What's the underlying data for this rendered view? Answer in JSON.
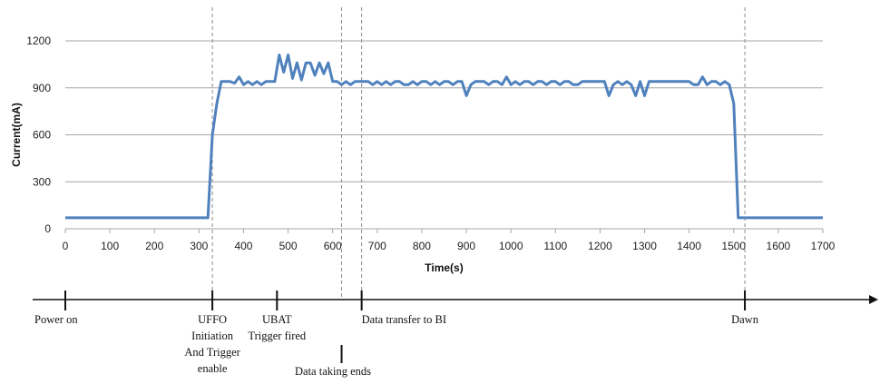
{
  "chart_data": {
    "type": "line",
    "title": "",
    "xlabel": "Time(s)",
    "ylabel": "Current(mA)",
    "xlim": [
      0,
      1700
    ],
    "ylim": [
      0,
      1200
    ],
    "xticks": [
      0,
      100,
      200,
      300,
      400,
      500,
      600,
      700,
      800,
      900,
      1000,
      1100,
      1200,
      1300,
      1400,
      1500,
      1600,
      1700
    ],
    "yticks": [
      0,
      300,
      600,
      900,
      1200
    ],
    "grid": "horizontal",
    "line_color": "#4f81bd",
    "series": [
      {
        "x": [
          0,
          320,
          330,
          340,
          350,
          360,
          370,
          380,
          390,
          400,
          410,
          420,
          430,
          440,
          450,
          460,
          470,
          480,
          490,
          500,
          510,
          520,
          530,
          540,
          550,
          560,
          570,
          580,
          590,
          600,
          610,
          620,
          630,
          640,
          650,
          660,
          670,
          680,
          690,
          700,
          710,
          720,
          730,
          740,
          750,
          760,
          770,
          780,
          790,
          800,
          810,
          820,
          830,
          840,
          850,
          860,
          870,
          880,
          890,
          900,
          910,
          920,
          930,
          940,
          950,
          960,
          970,
          980,
          990,
          1000,
          1010,
          1020,
          1030,
          1040,
          1050,
          1060,
          1070,
          1080,
          1090,
          1100,
          1110,
          1120,
          1130,
          1140,
          1150,
          1160,
          1170,
          1180,
          1190,
          1200,
          1210,
          1220,
          1230,
          1240,
          1250,
          1260,
          1270,
          1280,
          1290,
          1300,
          1310,
          1320,
          1330,
          1340,
          1350,
          1360,
          1370,
          1380,
          1390,
          1400,
          1410,
          1420,
          1430,
          1440,
          1450,
          1460,
          1470,
          1480,
          1490,
          1500,
          1510,
          1520,
          1530,
          1700
        ],
        "y": [
          70,
          70,
          600,
          800,
          940,
          940,
          940,
          930,
          970,
          920,
          940,
          920,
          940,
          920,
          940,
          940,
          940,
          1110,
          1000,
          1110,
          960,
          1060,
          950,
          1060,
          1060,
          980,
          1060,
          990,
          1060,
          940,
          940,
          920,
          940,
          920,
          940,
          940,
          940,
          940,
          920,
          940,
          920,
          940,
          920,
          940,
          940,
          920,
          920,
          940,
          920,
          940,
          940,
          920,
          940,
          920,
          940,
          940,
          920,
          940,
          940,
          850,
          920,
          940,
          940,
          940,
          920,
          940,
          940,
          920,
          970,
          920,
          940,
          920,
          940,
          940,
          920,
          940,
          940,
          920,
          940,
          940,
          920,
          940,
          940,
          920,
          920,
          940,
          940,
          940,
          940,
          940,
          940,
          850,
          920,
          940,
          920,
          940,
          920,
          850,
          940,
          850,
          940,
          940,
          940,
          940,
          940,
          940,
          940,
          940,
          940,
          940,
          920,
          920,
          970,
          920,
          940,
          940,
          920,
          940,
          920,
          800,
          70,
          70,
          70,
          70
        ]
      }
    ],
    "event_markers": [
      {
        "time": 0,
        "label": [
          "Power on"
        ],
        "dashed": false
      },
      {
        "time": 330,
        "label": [
          "UFFO",
          "Initiation",
          "And Trigger",
          "enable"
        ],
        "dashed": true
      },
      {
        "time": 475,
        "label": [
          "UBAT",
          "Trigger fired"
        ],
        "dashed": false
      },
      {
        "time": 620,
        "label": [
          "Data taking ends"
        ],
        "dashed": true
      },
      {
        "time": 665,
        "label": [
          "Data transfer to BI"
        ],
        "dashed": true
      },
      {
        "time": 1525,
        "label": [
          "Dawn"
        ],
        "dashed": true
      }
    ]
  }
}
